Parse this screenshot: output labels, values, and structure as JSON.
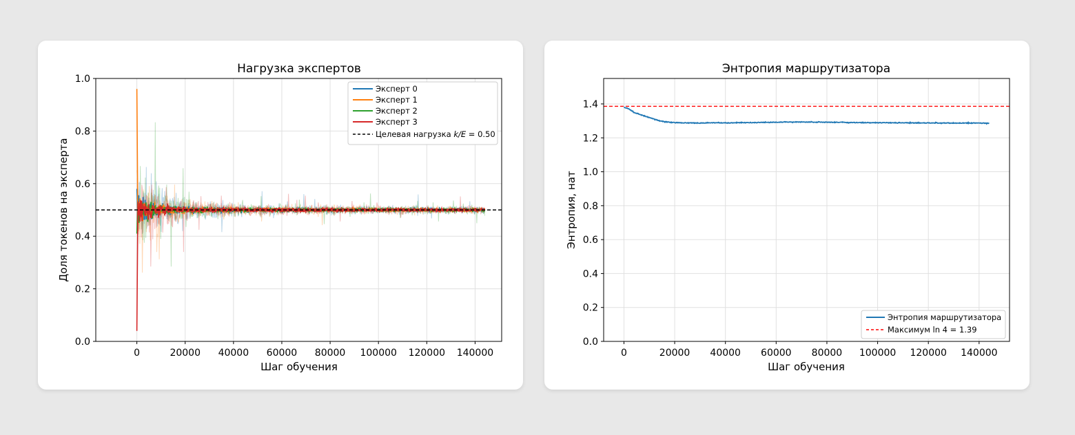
{
  "colors": {
    "expert0": "#1f77b4",
    "expert1": "#ff7f0e",
    "expert2": "#2ca02c",
    "expert3": "#d62728",
    "target": "#000000",
    "max_line": "#ff0000",
    "grid": "#e0e0e0"
  },
  "chart_data": [
    {
      "type": "line",
      "title": "Нагрузка экспертов",
      "xlabel": "Шаг обучения",
      "ylabel": "Доля токенов на эксперта",
      "xlim": [
        -17000,
        151000
      ],
      "ylim": [
        0.0,
        1.0
      ],
      "xticks": [
        "0",
        "20000",
        "40000",
        "60000",
        "80000",
        "100000",
        "120000",
        "140000"
      ],
      "yticks": [
        "0.0",
        "0.2",
        "0.4",
        "0.6",
        "0.8",
        "1.0"
      ],
      "grid": true,
      "legend_position": "top-right",
      "target_load": 0.5,
      "legend": {
        "items": [
          "Эксперт 0",
          "Эксперт 1",
          "Эксперт 2",
          "Эксперт 3"
        ],
        "target_prefix": "Целевая нагрузка ",
        "target_formula": "k/E",
        "target_suffix": " = 0.50"
      },
      "series": [
        {
          "name": "Эксперт 0",
          "x": [
            0,
            500,
            1500,
            3000,
            5000,
            10000,
            20000,
            40000,
            60000,
            80000,
            100000,
            120000,
            144000
          ],
          "values": [
            0.58,
            0.52,
            0.49,
            0.51,
            0.5,
            0.49,
            0.5,
            0.5,
            0.5,
            0.5,
            0.5,
            0.5,
            0.5
          ]
        },
        {
          "name": "Эксперт 1",
          "x": [
            0,
            500,
            1500,
            3000,
            5000,
            10000,
            20000,
            40000,
            60000,
            80000,
            100000,
            120000,
            144000
          ],
          "values": [
            0.96,
            0.55,
            0.52,
            0.49,
            0.51,
            0.5,
            0.5,
            0.5,
            0.5,
            0.5,
            0.5,
            0.5,
            0.5
          ]
        },
        {
          "name": "Эксперт 2",
          "x": [
            0,
            500,
            1500,
            3000,
            5000,
            10000,
            20000,
            40000,
            60000,
            80000,
            100000,
            120000,
            144000
          ],
          "values": [
            0.41,
            0.47,
            0.5,
            0.49,
            0.5,
            0.51,
            0.5,
            0.5,
            0.5,
            0.5,
            0.5,
            0.5,
            0.5
          ]
        },
        {
          "name": "Эксперт 3",
          "x": [
            0,
            500,
            1500,
            3000,
            5000,
            10000,
            20000,
            40000,
            60000,
            80000,
            100000,
            120000,
            144000
          ],
          "values": [
            0.04,
            0.53,
            0.46,
            0.53,
            0.49,
            0.5,
            0.5,
            0.5,
            0.5,
            0.5,
            0.5,
            0.5,
            0.5
          ]
        }
      ]
    },
    {
      "type": "line",
      "title": "Энтропия маршрутизатора",
      "xlabel": "Шаг обучения",
      "ylabel": "Энтропия, нат",
      "xlim": [
        -8000,
        152000
      ],
      "ylim": [
        0.0,
        1.55
      ],
      "xticks": [
        "0",
        "20000",
        "40000",
        "60000",
        "80000",
        "100000",
        "120000",
        "140000"
      ],
      "yticks": [
        "0.0",
        "0.2",
        "0.4",
        "0.6",
        "0.8",
        "1.0",
        "1.2",
        "1.4"
      ],
      "grid": true,
      "legend_position": "bottom-right",
      "max_entropy": 1.386,
      "legend": {
        "entropy_label": "Энтропия маршрутизатора",
        "max_prefix": "Максимум ",
        "max_formula": "ln 4",
        "max_suffix": " = 1.39"
      },
      "series": [
        {
          "name": "Энтропия маршрутизатора",
          "x": [
            0,
            2000,
            4000,
            6000,
            8000,
            10000,
            12000,
            14000,
            16000,
            20000,
            25000,
            30000,
            35000,
            40000,
            50000,
            60000,
            70000,
            80000,
            90000,
            100000,
            110000,
            120000,
            130000,
            140000,
            144000
          ],
          "values": [
            1.38,
            1.37,
            1.35,
            1.34,
            1.33,
            1.32,
            1.31,
            1.3,
            1.295,
            1.29,
            1.288,
            1.287,
            1.289,
            1.288,
            1.29,
            1.292,
            1.294,
            1.292,
            1.29,
            1.289,
            1.289,
            1.288,
            1.287,
            1.287,
            1.286
          ]
        }
      ]
    }
  ]
}
